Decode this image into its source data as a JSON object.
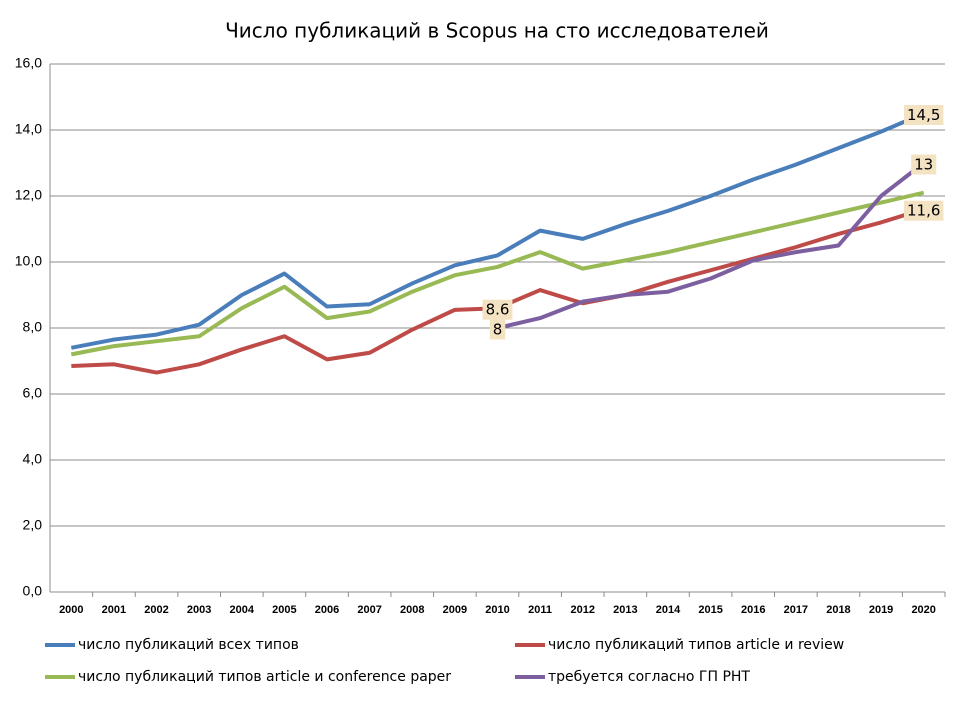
{
  "chart_data": {
    "type": "line",
    "title": "Число публикаций в Scopus на сто исследователей",
    "categories": [
      "2000",
      "2001",
      "2002",
      "2003",
      "2004",
      "2005",
      "2006",
      "2007",
      "2008",
      "2009",
      "2010",
      "2011",
      "2012",
      "2013",
      "2014",
      "2015",
      "2016",
      "2017",
      "2018",
      "2019",
      "2020"
    ],
    "ylim": [
      0,
      16
    ],
    "yticks": [
      {
        "value": 0,
        "label": "0,0"
      },
      {
        "value": 2,
        "label": "2,0"
      },
      {
        "value": 4,
        "label": "4,0"
      },
      {
        "value": 6,
        "label": "6,0"
      },
      {
        "value": 8,
        "label": "8,0"
      },
      {
        "value": 10,
        "label": "10,0"
      },
      {
        "value": 12,
        "label": "12,0"
      },
      {
        "value": 14,
        "label": "14,0"
      },
      {
        "value": 16,
        "label": "16,0"
      }
    ],
    "grid": true,
    "legend": "bottom",
    "series": [
      {
        "name": "число публикаций всех типов",
        "color": "#4a7ebb",
        "values": [
          7.4,
          7.65,
          7.8,
          8.1,
          9.0,
          9.65,
          8.65,
          8.72,
          9.35,
          9.9,
          10.2,
          10.95,
          10.7,
          11.15,
          11.55,
          12.0,
          12.5,
          12.95,
          13.45,
          13.95,
          14.5
        ],
        "value_labels": [
          null,
          null,
          null,
          null,
          null,
          null,
          null,
          null,
          null,
          null,
          null,
          null,
          null,
          null,
          null,
          null,
          null,
          null,
          null,
          null,
          "14,5"
        ]
      },
      {
        "name": "число публикаций типов article и review",
        "color": "#be4b48",
        "values": [
          6.85,
          6.9,
          6.65,
          6.9,
          7.35,
          7.75,
          7.05,
          7.25,
          7.95,
          8.55,
          8.6,
          9.15,
          8.75,
          9.0,
          9.4,
          9.75,
          10.1,
          10.45,
          10.85,
          11.2,
          11.6
        ],
        "value_labels": [
          null,
          null,
          null,
          null,
          null,
          null,
          null,
          null,
          null,
          null,
          "8.6",
          null,
          null,
          null,
          null,
          null,
          null,
          null,
          null,
          null,
          "11,6"
        ]
      },
      {
        "name": "число публикаций типов article и conference paper",
        "color": "#98b954",
        "values": [
          7.2,
          7.45,
          7.6,
          7.75,
          8.6,
          9.25,
          8.3,
          8.5,
          9.1,
          9.6,
          9.85,
          10.3,
          9.8,
          10.05,
          10.3,
          10.6,
          10.9,
          11.2,
          11.5,
          11.8,
          12.1
        ]
      },
      {
        "name": "требуется согласно ГП РНТ",
        "color": "#7d5fa0",
        "values": [
          null,
          null,
          null,
          null,
          null,
          null,
          null,
          null,
          null,
          null,
          8,
          8.3,
          8.8,
          9.0,
          9.1,
          9.5,
          10.05,
          10.3,
          10.5,
          12.0,
          13
        ],
        "value_labels": [
          null,
          null,
          null,
          null,
          null,
          null,
          null,
          null,
          null,
          null,
          "8",
          null,
          null,
          null,
          null,
          null,
          null,
          null,
          null,
          null,
          "13"
        ]
      }
    ]
  }
}
